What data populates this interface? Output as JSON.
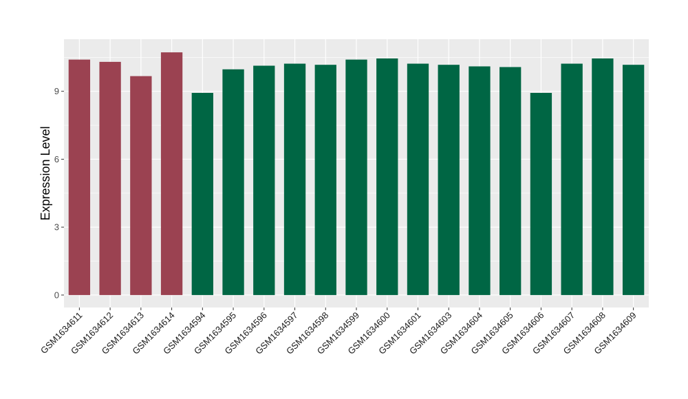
{
  "chart_data": {
    "type": "bar",
    "title": "",
    "xlabel": "",
    "ylabel": "Expression Level",
    "ylim": [
      -0.55,
      11.3
    ],
    "yticks": [
      0,
      3,
      6,
      9
    ],
    "grid": true,
    "legend": "none",
    "colors": {
      "groupA": "#9b4251",
      "groupB": "#006644",
      "panel": "#ebebeb",
      "grid": "#ffffff"
    },
    "categories": [
      "GSM1634611",
      "GSM1634612",
      "GSM1634613",
      "GSM1634614",
      "GSM1634594",
      "GSM1634595",
      "GSM1634596",
      "GSM1634597",
      "GSM1634598",
      "GSM1634599",
      "GSM1634600",
      "GSM1634601",
      "GSM1634603",
      "GSM1634604",
      "GSM1634605",
      "GSM1634606",
      "GSM1634607",
      "GSM1634608",
      "GSM1634609"
    ],
    "values": [
      10.4,
      10.3,
      9.67,
      10.72,
      8.93,
      9.97,
      10.13,
      10.22,
      10.17,
      10.4,
      10.45,
      10.22,
      10.17,
      10.1,
      10.07,
      8.93,
      10.22,
      10.45,
      10.17
    ],
    "groups": [
      "A",
      "A",
      "A",
      "A",
      "B",
      "B",
      "B",
      "B",
      "B",
      "B",
      "B",
      "B",
      "B",
      "B",
      "B",
      "B",
      "B",
      "B",
      "B"
    ]
  }
}
